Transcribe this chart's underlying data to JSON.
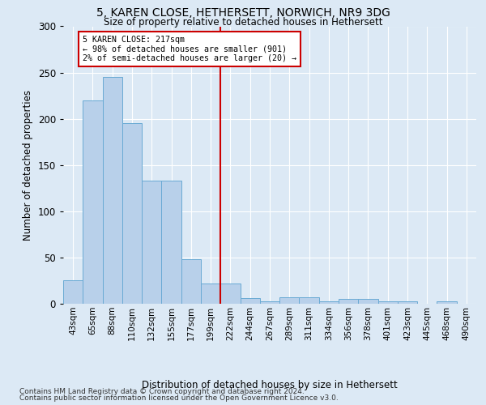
{
  "title": "5, KAREN CLOSE, HETHERSETT, NORWICH, NR9 3DG",
  "subtitle": "Size of property relative to detached houses in Hethersett",
  "xlabel": "Distribution of detached houses by size in Hethersett",
  "ylabel": "Number of detached properties",
  "footer_line1": "Contains HM Land Registry data © Crown copyright and database right 2024.",
  "footer_line2": "Contains public sector information licensed under the Open Government Licence v3.0.",
  "bar_labels": [
    "43sqm",
    "65sqm",
    "88sqm",
    "110sqm",
    "132sqm",
    "155sqm",
    "177sqm",
    "199sqm",
    "222sqm",
    "244sqm",
    "267sqm",
    "289sqm",
    "311sqm",
    "334sqm",
    "356sqm",
    "378sqm",
    "401sqm",
    "423sqm",
    "445sqm",
    "468sqm",
    "490sqm"
  ],
  "bar_values": [
    25,
    220,
    245,
    195,
    133,
    133,
    48,
    22,
    22,
    6,
    3,
    7,
    7,
    3,
    5,
    5,
    3,
    3,
    0,
    3,
    0
  ],
  "bar_color": "#b8d0ea",
  "bar_edgecolor": "#6aaad4",
  "vline_color": "#cc0000",
  "annotation_line1": "5 KAREN CLOSE: 217sqm",
  "annotation_line2": "← 98% of detached houses are smaller (901)",
  "annotation_line3": "2% of semi-detached houses are larger (20) →",
  "annotation_box_facecolor": "#ffffff",
  "annotation_box_edgecolor": "#cc0000",
  "ylim": [
    0,
    300
  ],
  "background_color": "#dce9f5",
  "plot_background": "#dce9f5",
  "grid_color": "#ffffff"
}
